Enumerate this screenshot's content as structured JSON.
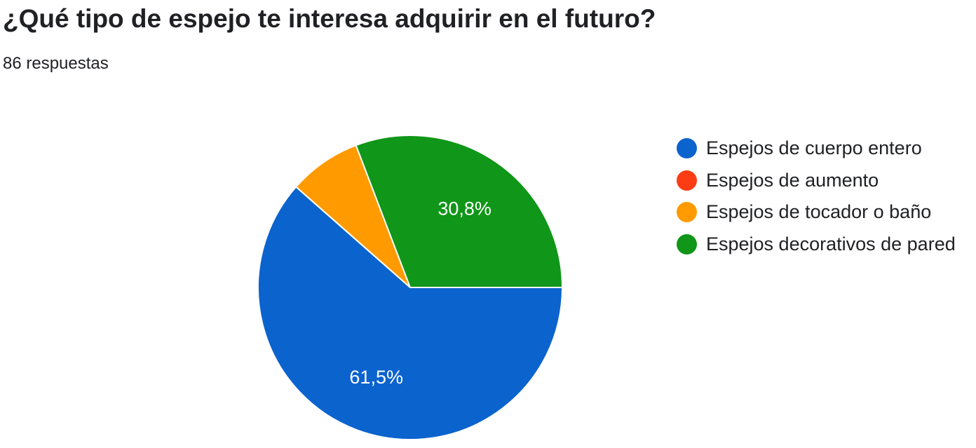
{
  "chart_data": {
    "type": "pie",
    "title": "¿Qué tipo de espejo te interesa adquirir en el futuro?",
    "subtitle": "86 respuestas",
    "categories": [
      "Espejos de cuerpo entero",
      "Espejos de aumento",
      "Espejos de tocador o baño",
      "Espejos decorativos de pared"
    ],
    "values": [
      61.5,
      0,
      7.7,
      30.8
    ],
    "data_labels": [
      "61,5%",
      "",
      "",
      "30,8%"
    ],
    "colors": [
      "#0B63CE",
      "#FC3D14",
      "#FF9A00",
      "#109618"
    ],
    "legend_position": "right"
  }
}
